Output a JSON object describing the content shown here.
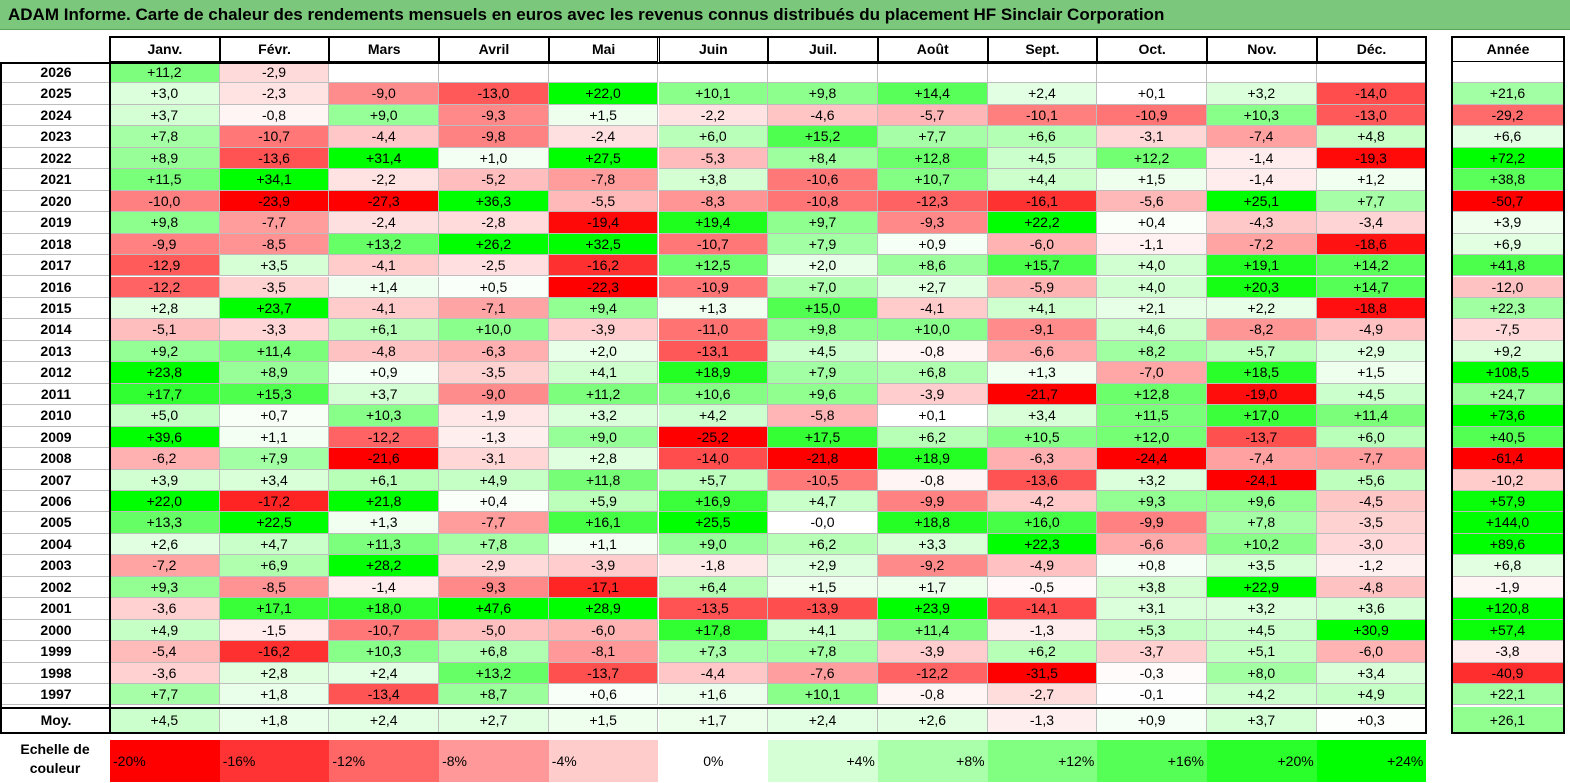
{
  "title": "ADAM Informe. Carte de chaleur des rendements mensuels en euros avec les revenus connus distribués du placement HF Sinclair Corporation",
  "months": [
    "Janv.",
    "Févr.",
    "Mars",
    "Avril",
    "Mai",
    "Juin",
    "Juil.",
    "Août",
    "Sept.",
    "Oct.",
    "Nov.",
    "Déc."
  ],
  "year_header": "Année",
  "average_label": "Moy.",
  "scale_label": "Echelle de couleur",
  "colors": {
    "positive_max": "#00ff00",
    "neutral": "#ffffff",
    "negative_max": "#ff0000",
    "title_bar": "#7bc77c"
  },
  "chart_data": {
    "type": "heatmap",
    "title": "ADAM Informe. Carte de chaleur des rendements mensuels en euros avec les revenus connus distribués du placement HF Sinclair Corporation",
    "columns": [
      "Janv.",
      "Févr.",
      "Mars",
      "Avril",
      "Mai",
      "Juin",
      "Juil.",
      "Août",
      "Sept.",
      "Oct.",
      "Nov.",
      "Déc.",
      "Année"
    ],
    "rows": [
      {
        "year": "2026",
        "months": [
          "+11,2",
          "-2,9",
          "",
          "",
          "",
          "",
          "",
          "",
          "",
          "",
          "",
          ""
        ],
        "annual": ""
      },
      {
        "year": "2025",
        "months": [
          "+3,0",
          "-2,3",
          "-9,0",
          "-13,0",
          "+22,0",
          "+10,1",
          "+9,8",
          "+14,4",
          "+2,4",
          "+0,1",
          "+3,2",
          "-14,0"
        ],
        "annual": "+21,6"
      },
      {
        "year": "2024",
        "months": [
          "+3,7",
          "-0,8",
          "+9,0",
          "-9,3",
          "+1,5",
          "-2,2",
          "-4,6",
          "-5,7",
          "-10,1",
          "-10,9",
          "+10,3",
          "-13,0"
        ],
        "annual": "-29,2"
      },
      {
        "year": "2023",
        "months": [
          "+7,8",
          "-10,7",
          "-4,4",
          "-9,8",
          "-2,4",
          "+6,0",
          "+15,2",
          "+7,7",
          "+6,6",
          "-3,1",
          "-7,4",
          "+4,8"
        ],
        "annual": "+6,6"
      },
      {
        "year": "2022",
        "months": [
          "+8,9",
          "-13,6",
          "+31,4",
          "+1,0",
          "+27,5",
          "-5,3",
          "+8,4",
          "+12,8",
          "+4,5",
          "+12,2",
          "-1,4",
          "-19,3"
        ],
        "annual": "+72,2"
      },
      {
        "year": "2021",
        "months": [
          "+11,5",
          "+34,1",
          "-2,2",
          "-5,2",
          "-7,8",
          "+3,8",
          "-10,6",
          "+10,7",
          "+4,4",
          "+1,5",
          "-1,4",
          "+1,2"
        ],
        "annual": "+38,8"
      },
      {
        "year": "2020",
        "months": [
          "-10,0",
          "-23,9",
          "-27,3",
          "+36,3",
          "-5,5",
          "-8,3",
          "-10,8",
          "-12,3",
          "-16,1",
          "-5,6",
          "+25,1",
          "+7,7"
        ],
        "annual": "-50,7"
      },
      {
        "year": "2019",
        "months": [
          "+9,8",
          "-7,7",
          "-2,4",
          "-2,8",
          "-19,4",
          "+19,4",
          "+9,7",
          "-9,3",
          "+22,2",
          "+0,4",
          "-4,3",
          "-3,4"
        ],
        "annual": "+3,9"
      },
      {
        "year": "2018",
        "months": [
          "-9,9",
          "-8,5",
          "+13,2",
          "+26,2",
          "+32,5",
          "-10,7",
          "+7,9",
          "+0,9",
          "-6,0",
          "-1,1",
          "-7,2",
          "-18,6"
        ],
        "annual": "+6,9"
      },
      {
        "year": "2017",
        "months": [
          "-12,9",
          "+3,5",
          "-4,1",
          "-2,5",
          "-16,2",
          "+12,5",
          "+2,0",
          "+8,6",
          "+15,7",
          "+4,0",
          "+19,1",
          "+14,2"
        ],
        "annual": "+41,8"
      },
      {
        "year": "2016",
        "months": [
          "-12,2",
          "-3,5",
          "+1,4",
          "+0,5",
          "-22,3",
          "-10,9",
          "+7,0",
          "+2,7",
          "-5,9",
          "+4,0",
          "+20,3",
          "+14,7"
        ],
        "annual": "-12,0"
      },
      {
        "year": "2015",
        "months": [
          "+2,8",
          "+23,7",
          "-4,1",
          "-7,1",
          "+9,4",
          "+1,3",
          "+15,0",
          "-4,1",
          "+4,1",
          "+2,1",
          "+2,2",
          "-18,8"
        ],
        "annual": "+22,3"
      },
      {
        "year": "2014",
        "months": [
          "-5,1",
          "-3,3",
          "+6,1",
          "+10,0",
          "-3,9",
          "-11,0",
          "+9,8",
          "+10,0",
          "-9,1",
          "+4,6",
          "-8,2",
          "-4,9"
        ],
        "annual": "-7,5"
      },
      {
        "year": "2013",
        "months": [
          "+9,2",
          "+11,4",
          "-4,8",
          "-6,3",
          "+2,0",
          "-13,1",
          "+4,5",
          "-0,8",
          "-6,6",
          "+8,2",
          "+5,7",
          "+2,9"
        ],
        "annual": "+9,2"
      },
      {
        "year": "2012",
        "months": [
          "+23,8",
          "+8,9",
          "+0,9",
          "-3,5",
          "+4,1",
          "+18,9",
          "+7,9",
          "+6,8",
          "+1,3",
          "-7,0",
          "+18,5",
          "+1,5"
        ],
        "annual": "+108,5"
      },
      {
        "year": "2011",
        "months": [
          "+17,7",
          "+15,3",
          "+3,7",
          "-9,0",
          "+11,2",
          "+10,6",
          "+9,6",
          "-3,9",
          "-21,7",
          "+12,8",
          "-19,0",
          "+4,5"
        ],
        "annual": "+24,7"
      },
      {
        "year": "2010",
        "months": [
          "+5,0",
          "+0,7",
          "+10,3",
          "-1,9",
          "+3,2",
          "+4,2",
          "-5,8",
          "+0,1",
          "+3,4",
          "+11,5",
          "+17,0",
          "+11,4"
        ],
        "annual": "+73,6"
      },
      {
        "year": "2009",
        "months": [
          "+39,6",
          "+1,1",
          "-12,2",
          "-1,3",
          "+9,0",
          "-25,2",
          "+17,5",
          "+6,2",
          "+10,5",
          "+12,0",
          "-13,7",
          "+6,0"
        ],
        "annual": "+40,5"
      },
      {
        "year": "2008",
        "months": [
          "-6,2",
          "+7,9",
          "-21,6",
          "-3,1",
          "+2,8",
          "-14,0",
          "-21,8",
          "+18,9",
          "-6,3",
          "-24,4",
          "-7,4",
          "-7,7"
        ],
        "annual": "-61,4"
      },
      {
        "year": "2007",
        "months": [
          "+3,9",
          "+3,4",
          "+6,1",
          "+4,9",
          "+11,8",
          "+5,7",
          "-10,5",
          "-0,8",
          "-13,6",
          "+3,2",
          "-24,1",
          "+5,6"
        ],
        "annual": "-10,2"
      },
      {
        "year": "2006",
        "months": [
          "+22,0",
          "-17,2",
          "+21,8",
          "+0,4",
          "+5,9",
          "+16,9",
          "+4,7",
          "-9,9",
          "-4,2",
          "+9,3",
          "+9,6",
          "-4,5"
        ],
        "annual": "+57,9"
      },
      {
        "year": "2005",
        "months": [
          "+13,3",
          "+22,5",
          "+1,3",
          "-7,7",
          "+16,1",
          "+25,5",
          "-0,0",
          "+18,8",
          "+16,0",
          "-9,9",
          "+7,8",
          "-3,5"
        ],
        "annual": "+144,0"
      },
      {
        "year": "2004",
        "months": [
          "+2,6",
          "+4,7",
          "+11,3",
          "+7,8",
          "+1,1",
          "+9,0",
          "+6,2",
          "+3,3",
          "+22,3",
          "-6,6",
          "+10,2",
          "-3,0"
        ],
        "annual": "+89,6"
      },
      {
        "year": "2003",
        "months": [
          "-7,2",
          "+6,9",
          "+28,2",
          "-2,9",
          "-3,9",
          "-1,8",
          "+2,9",
          "-9,2",
          "-4,9",
          "+0,8",
          "+3,5",
          "-1,2"
        ],
        "annual": "+6,8"
      },
      {
        "year": "2002",
        "months": [
          "+9,3",
          "-8,5",
          "-1,4",
          "-9,3",
          "-17,1",
          "+6,4",
          "+1,5",
          "+1,7",
          "-0,5",
          "+3,8",
          "+22,9",
          "-4,8"
        ],
        "annual": "-1,9"
      },
      {
        "year": "2001",
        "months": [
          "-3,6",
          "+17,1",
          "+18,0",
          "+47,6",
          "+28,9",
          "-13,5",
          "-13,9",
          "+23,9",
          "-14,1",
          "+3,1",
          "+3,2",
          "+3,6"
        ],
        "annual": "+120,8"
      },
      {
        "year": "2000",
        "months": [
          "+4,9",
          "-1,5",
          "-10,7",
          "-5,0",
          "-6,0",
          "+17,8",
          "+4,1",
          "+11,4",
          "-1,3",
          "+5,3",
          "+4,5",
          "+30,9"
        ],
        "annual": "+57,4"
      },
      {
        "year": "1999",
        "months": [
          "-5,4",
          "-16,2",
          "+10,3",
          "+6,8",
          "-8,1",
          "+7,3",
          "+7,8",
          "-3,9",
          "+6,2",
          "-3,7",
          "+5,1",
          "-6,0"
        ],
        "annual": "-3,8"
      },
      {
        "year": "1998",
        "months": [
          "-3,6",
          "+2,8",
          "+2,4",
          "+13,2",
          "-13,7",
          "-4,4",
          "-7,6",
          "-12,2",
          "-31,5",
          "-0,3",
          "+8,0",
          "+3,4"
        ],
        "annual": "-40,9"
      },
      {
        "year": "1997",
        "months": [
          "+7,7",
          "+1,8",
          "-13,4",
          "+8,7",
          "+0,6",
          "+1,6",
          "+10,1",
          "-0,8",
          "-2,7",
          "-0,1",
          "+4,2",
          "+4,9"
        ],
        "annual": "+22,1"
      }
    ],
    "average": {
      "months": [
        "+4,5",
        "+1,8",
        "+2,4",
        "+2,7",
        "+1,5",
        "+1,7",
        "+2,4",
        "+2,6",
        "-1,3",
        "+0,9",
        "+3,7",
        "+0,3"
      ],
      "annual": "+26,1"
    },
    "scale": [
      "-20%",
      "-16%",
      "-12%",
      "-8%",
      "-4%",
      "0%",
      "+4%",
      "+8%",
      "+12%",
      "+16%",
      "+20%",
      "+24%"
    ],
    "scale_values": [
      -20,
      -16,
      -12,
      -8,
      -4,
      0,
      4,
      8,
      12,
      16,
      20,
      24
    ]
  }
}
